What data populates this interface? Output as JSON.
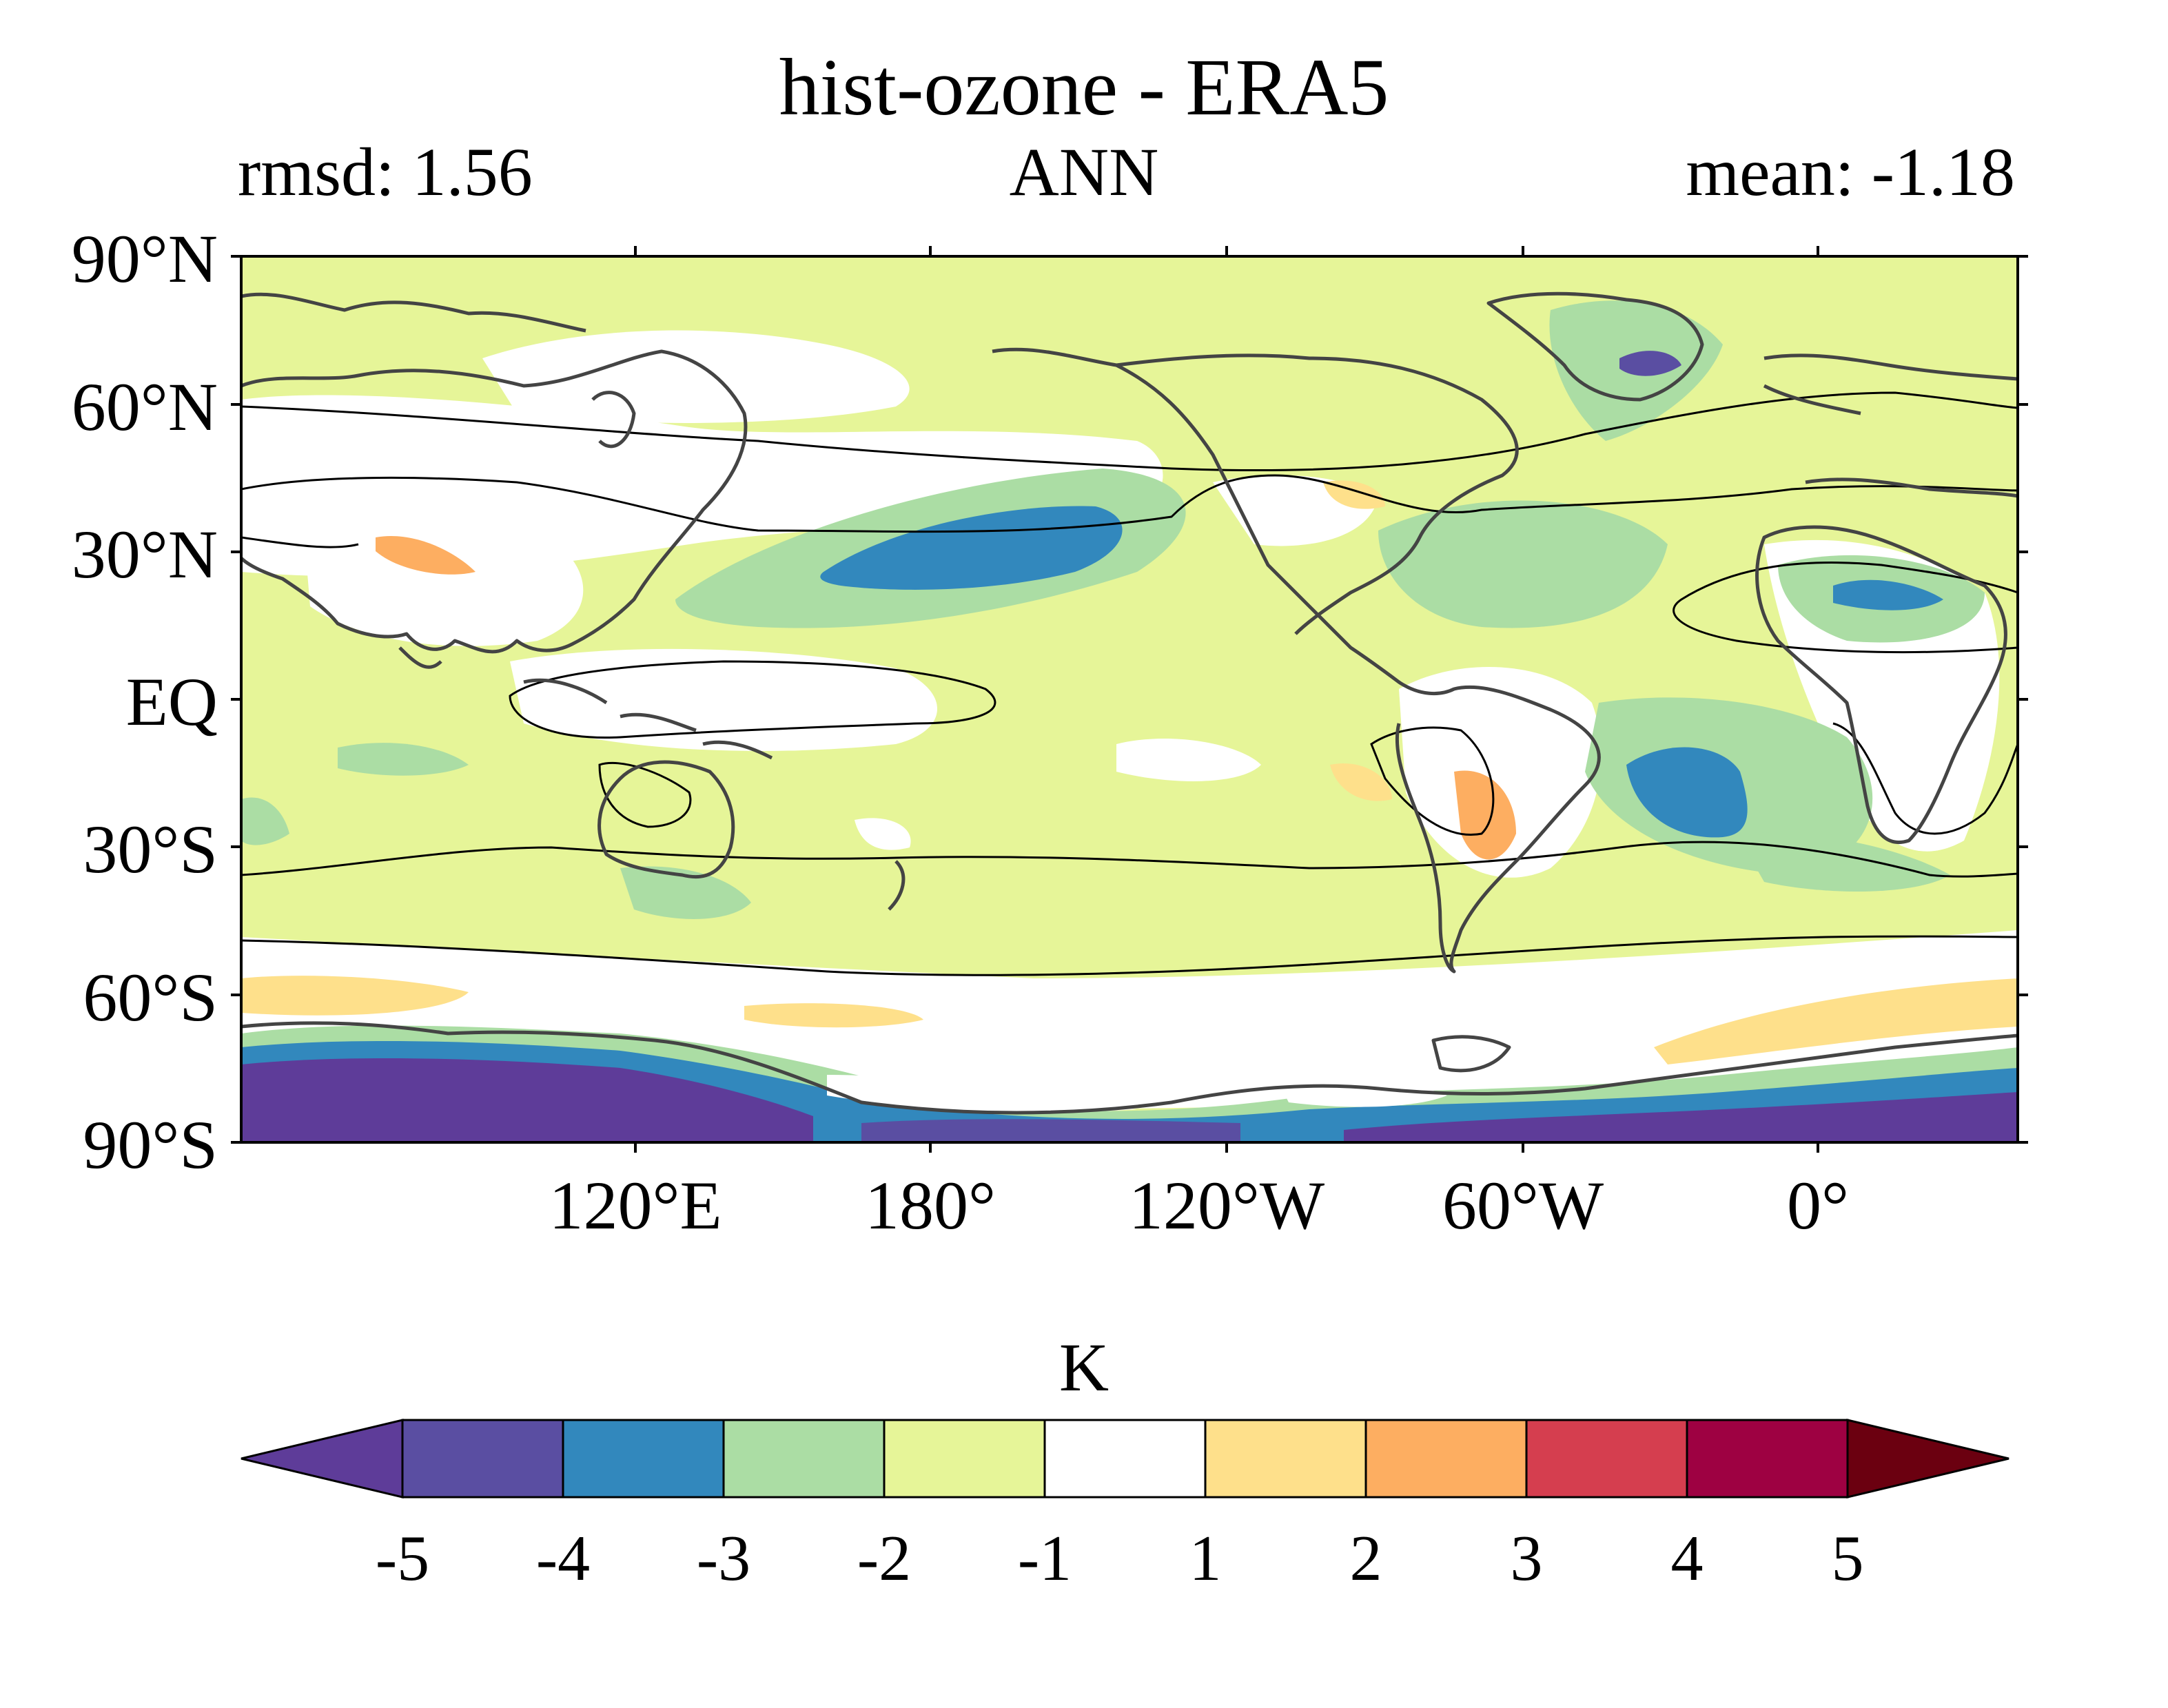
{
  "header": {
    "title": "hist-ozone - ERA5",
    "rmsd": "rmsd: 1.56",
    "season": "ANN",
    "mean": "mean: -1.18"
  },
  "lat_labels": [
    "90°N",
    "60°N",
    "30°N",
    "EQ",
    "30°S",
    "60°S",
    "90°S"
  ],
  "lon_labels": [
    "120°E",
    "180°",
    "120°W",
    "60°W",
    "0°"
  ],
  "colorbar": {
    "unit": "K",
    "ticks": [
      "-5",
      "-4",
      "-3",
      "-2",
      "-1",
      "1",
      "2",
      "3",
      "4",
      "5"
    ],
    "colors": [
      "#5e3c99",
      "#5a4ea2",
      "#3288bd",
      "#abdda4",
      "#e6f598",
      "#ffffff",
      "#fee08b",
      "#fdae61",
      "#d53e4f",
      "#9e0142",
      "#6b0010"
    ]
  }
}
